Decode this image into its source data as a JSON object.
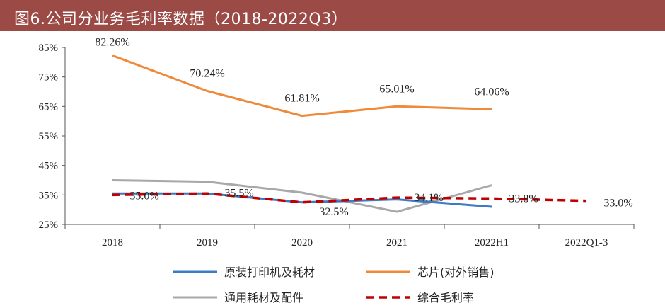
{
  "title": "图6.公司分业务毛利率数据（2018-2022Q3）",
  "colors": {
    "title_bg": "#9b4a45",
    "original": "#3c7bc4",
    "chip": "#ee8a3a",
    "general": "#a8a8a8",
    "overall": "#c00000"
  },
  "chart_data": {
    "type": "line",
    "title": "图6.公司分业务毛利率数据（2018-2022Q3）",
    "categories": [
      "2018",
      "2019",
      "2020",
      "2021",
      "2022H1",
      "2022Q1-3"
    ],
    "y_ticks": [
      "25%",
      "35%",
      "45%",
      "55%",
      "65%",
      "75%",
      "85%"
    ],
    "ylim": [
      25,
      85
    ],
    "series": [
      {
        "name": "原装打印机及耗材",
        "key": "original",
        "dash": false,
        "values": [
          35.5,
          35.5,
          32.5,
          33.5,
          31.0,
          null
        ],
        "labels": []
      },
      {
        "name": "芯片(对外销售)",
        "key": "chip",
        "dash": false,
        "values": [
          82.26,
          70.24,
          61.81,
          65.01,
          64.06,
          null
        ],
        "labels": [
          "82.26%",
          "70.24%",
          "61.81%",
          "65.01%",
          "64.06%",
          null
        ]
      },
      {
        "name": "通用耗材及配件",
        "key": "general",
        "dash": false,
        "values": [
          40.0,
          39.5,
          35.8,
          29.3,
          38.3,
          null
        ],
        "labels": []
      },
      {
        "name": "综合毛利率",
        "key": "overall",
        "dash": true,
        "values": [
          35.0,
          35.5,
          32.5,
          34.1,
          33.8,
          33.0
        ],
        "labels": [
          "35.0%",
          "35.5%",
          "32.5%",
          "34.1%",
          "33.8%",
          "33.0%"
        ]
      }
    ]
  }
}
